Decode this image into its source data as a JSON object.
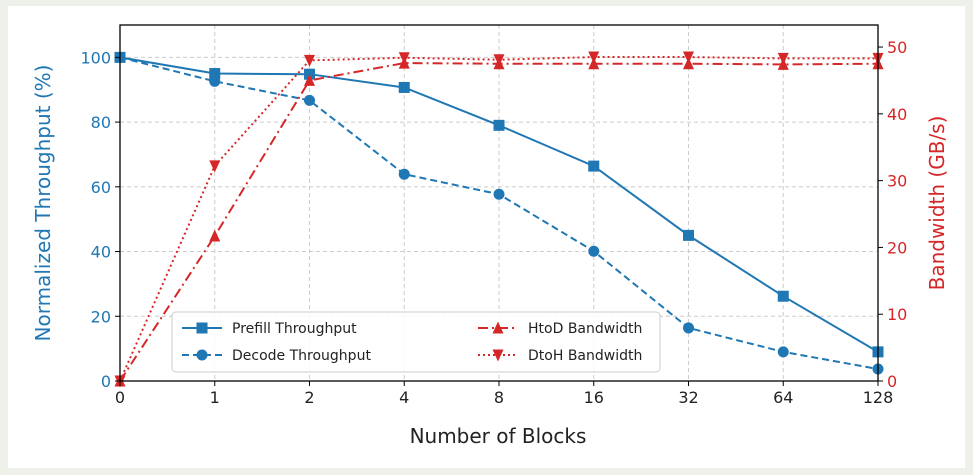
{
  "chart_data": {
    "type": "line",
    "xlabel": "Number of Blocks",
    "ylabel_left": "Normalized Throughput (%)",
    "ylabel_right": "Bandwidth (GB/s)",
    "categories": [
      "0",
      "1",
      "2",
      "4",
      "8",
      "16",
      "32",
      "64",
      "128"
    ],
    "ylim_left": [
      0,
      110
    ],
    "ylim_right": [
      0,
      53.3
    ],
    "yticks_left": [
      0,
      20,
      40,
      60,
      80,
      100
    ],
    "yticks_right": [
      0,
      10,
      20,
      30,
      40,
      50
    ],
    "grid": true,
    "legend_placement": "bottom-left",
    "series": [
      {
        "name": "Prefill Throughput",
        "axis": "left",
        "color": "#1f77b4",
        "style": "solid",
        "marker": "square",
        "values": [
          100,
          95,
          94.8,
          90.7,
          79,
          66.4,
          45,
          26.2,
          9
        ]
      },
      {
        "name": "Decode Throughput",
        "axis": "left",
        "color": "#1f77b4",
        "style": "dashed",
        "marker": "circle",
        "values": [
          100,
          92.6,
          86.7,
          63.9,
          57.7,
          40.1,
          16.4,
          9,
          3.7
        ]
      },
      {
        "name": "HtoD Bandwidth",
        "axis": "right",
        "color": "#d62728",
        "style": "dashdot",
        "marker": "triangle-up",
        "values": [
          0,
          21.7,
          45,
          47.6,
          47.5,
          47.5,
          47.5,
          47.4,
          47.5
        ]
      },
      {
        "name": "DtoH Bandwidth",
        "axis": "right",
        "color": "#d62728",
        "style": "dotted",
        "marker": "triangle-down",
        "values": [
          0,
          32.2,
          48,
          48.4,
          48.1,
          48.5,
          48.5,
          48.3,
          48.3
        ]
      }
    ]
  }
}
